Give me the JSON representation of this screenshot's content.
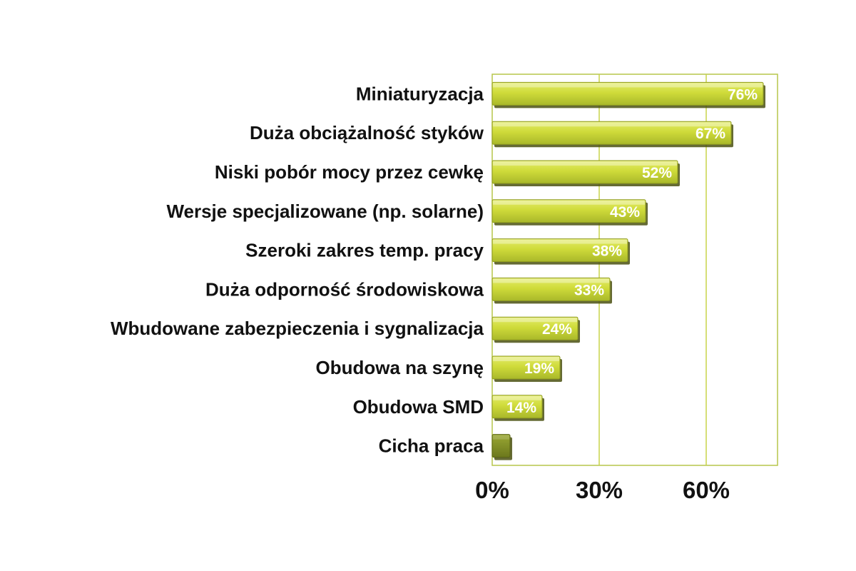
{
  "chart_data": {
    "type": "bar",
    "orientation": "horizontal",
    "categories": [
      "Miniaturyzacja",
      "Duża obciążalność styków",
      "Niski pobór mocy przez cewkę",
      "Wersje specjalizowane (np. solarne)",
      "Szeroki zakres temp. pracy",
      "Duża odporność środowiskowa",
      "Wbudowane zabezpieczenia i sygnalizacja",
      "Obudowa na szynę",
      "Obudowa SMD",
      "Cicha praca"
    ],
    "values": [
      76,
      67,
      52,
      43,
      38,
      33,
      24,
      19,
      14,
      5
    ],
    "data_labels": [
      "76%",
      "67%",
      "52%",
      "43%",
      "38%",
      "33%",
      "24%",
      "19%",
      "14%",
      ""
    ],
    "x_ticks": [
      "0%",
      "30%",
      "60%"
    ],
    "x_tick_values": [
      0,
      30,
      60
    ],
    "xlim": [
      0,
      80
    ],
    "title": "",
    "xlabel": "",
    "ylabel": "",
    "grid": "vertical",
    "legend": "none",
    "colors": {
      "bar_light": "#d4e03c",
      "bar_mid": "#b9c930",
      "bar_dark": "#8e9a1e",
      "bar_edge": "#4a5010",
      "bar_small": "#7d8a22",
      "grid": "#c8d34a",
      "frame": "#b7c64a"
    }
  }
}
